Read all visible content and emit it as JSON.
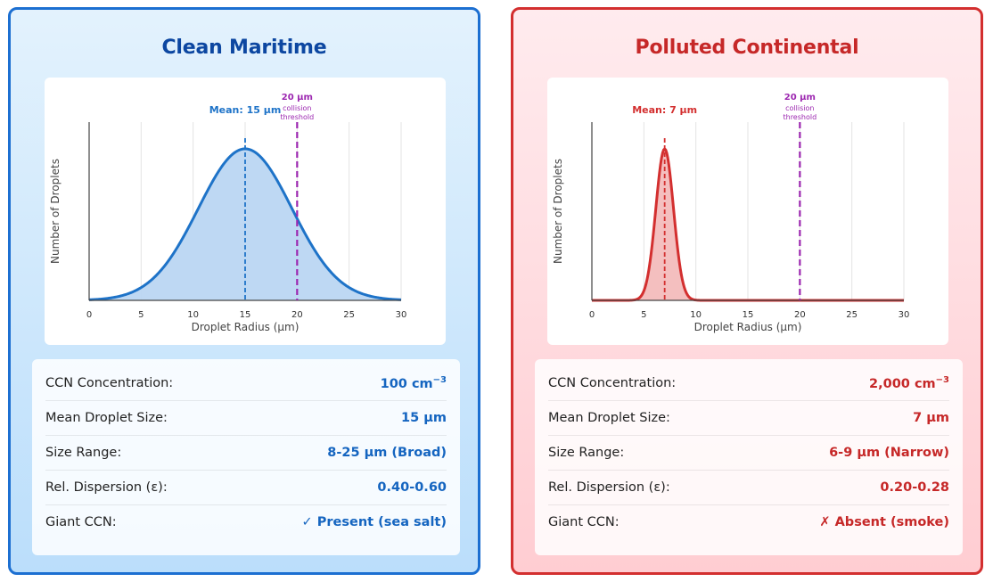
{
  "panels": [
    {
      "id": "clean",
      "title": "Clean Maritime",
      "stats": [
        {
          "label": "CCN Concentration:",
          "value": "100 cm",
          "sup": "−3"
        },
        {
          "label": "Mean Droplet Size:",
          "value": "15 µm",
          "sup": ""
        },
        {
          "label": "Size Range:",
          "value": "8-25 µm (Broad)",
          "sup": ""
        },
        {
          "label": "Rel. Dispersion (ε):",
          "value": "0.40-0.60",
          "sup": ""
        },
        {
          "label": "Giant CCN:",
          "value": "✓ Present (sea salt)",
          "sup": ""
        }
      ]
    },
    {
      "id": "poll",
      "title": "Polluted Continental",
      "stats": [
        {
          "label": "CCN Concentration:",
          "value": "2,000 cm",
          "sup": "−3"
        },
        {
          "label": "Mean Droplet Size:",
          "value": "7 µm",
          "sup": ""
        },
        {
          "label": "Size Range:",
          "value": "6-9 µm (Narrow)",
          "sup": ""
        },
        {
          "label": "Rel. Dispersion (ε):",
          "value": "0.20-0.28",
          "sup": ""
        },
        {
          "label": "Giant CCN:",
          "value": "✗ Absent (smoke)",
          "sup": ""
        }
      ]
    }
  ],
  "chart_data": [
    {
      "type": "area",
      "title": "Clean Maritime",
      "xlabel": "Droplet Radius (µm)",
      "ylabel": "Number of Droplets",
      "xlim": [
        0,
        30
      ],
      "xticks": [
        0,
        5,
        10,
        15,
        20,
        25,
        30
      ],
      "distribution": {
        "shape": "gaussian",
        "mean": 15,
        "sigma": 4.5
      },
      "mean_label": "Mean: 15 µm",
      "threshold": {
        "x": 20,
        "value_label": "20 µm",
        "line1": "collision",
        "line2": "threshold"
      },
      "color": "#1e73c8",
      "fill": "#bbd6f2",
      "threshold_color": "#9c27b0",
      "grid": true
    },
    {
      "type": "area",
      "title": "Polluted Continental",
      "xlabel": "Droplet Radius (µm)",
      "ylabel": "Number of Droplets",
      "xlim": [
        0,
        30
      ],
      "xticks": [
        0,
        5,
        10,
        15,
        20,
        25,
        30
      ],
      "distribution": {
        "shape": "gaussian",
        "mean": 7,
        "sigma": 0.85
      },
      "mean_label": "Mean: 7 µm",
      "threshold": {
        "x": 20,
        "value_label": "20 µm",
        "line1": "collision",
        "line2": "threshold"
      },
      "color": "#d32f2f",
      "fill": "#f3bcbc",
      "threshold_color": "#9c27b0",
      "grid": true
    }
  ]
}
